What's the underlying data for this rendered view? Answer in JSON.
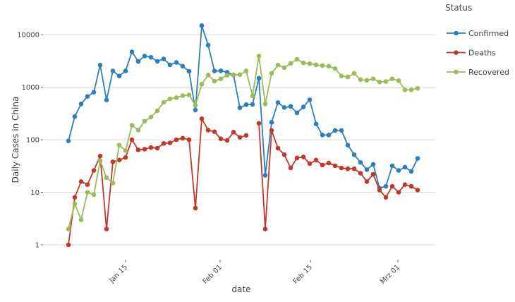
{
  "chart_data": {
    "type": "line",
    "title": "",
    "xlabel": "date",
    "ylabel": "Daily Cases in China",
    "yscale": "log10",
    "ylim": [
      1,
      10000
    ],
    "y_ticks": [
      {
        "value": 1,
        "label": "1"
      },
      {
        "value": 10,
        "label": "10"
      },
      {
        "value": 100,
        "label": "100"
      },
      {
        "value": 1000,
        "label": "1000"
      },
      {
        "value": 10000,
        "label": "10000"
      }
    ],
    "x_note": "x = day index of observation (0..55)",
    "xlim": [
      0,
      55
    ],
    "x_ticks": [
      {
        "value": 9,
        "label": "Jan 15"
      },
      {
        "value": 23,
        "label": "Feb 01"
      },
      {
        "value": 38,
        "label": "Feb 15"
      },
      {
        "value": 52,
        "label": "Mrz 01"
      }
    ],
    "grid": true,
    "legend": {
      "title": "Status",
      "placement": "right"
    },
    "series": [
      {
        "name": "Confirmed",
        "color": "#2c7fb8",
        "values": [
          95,
          277,
          480,
          665,
          800,
          2630,
          570,
          2030,
          1630,
          2030,
          4700,
          3080,
          3900,
          3700,
          3100,
          3450,
          2650,
          2950,
          2500,
          2000,
          367,
          14800,
          6300,
          2030,
          2050,
          1920,
          1700,
          406,
          465,
          470,
          1480,
          21,
          215,
          510,
          410,
          430,
          325,
          420,
          575,
          200,
          123,
          123,
          150,
          150,
          79,
          52,
          37,
          27,
          34,
          12,
          13,
          32,
          26,
          30,
          25,
          44
        ]
      },
      {
        "name": "Deaths",
        "color": "#c0392b",
        "values": [
          1,
          8,
          16,
          14,
          26,
          49,
          2,
          38,
          41,
          46,
          100,
          64,
          66,
          71,
          69,
          85,
          87,
          100,
          107,
          100,
          5,
          250,
          152,
          142,
          104,
          97,
          139,
          111,
          121,
          null,
          205,
          2,
          150,
          69,
          52,
          29,
          45,
          47,
          35,
          41,
          33,
          36,
          32,
          29,
          28,
          28,
          23,
          16,
          22,
          11,
          8,
          13,
          10,
          14,
          13,
          11
        ]
      },
      {
        "name": "Recovered",
        "color": "#9bbb59",
        "values": [
          2,
          6,
          3,
          10,
          9,
          40,
          19,
          15,
          79,
          62,
          188,
          152,
          225,
          270,
          356,
          515,
          600,
          630,
          690,
          710,
          450,
          1140,
          1700,
          1300,
          1440,
          1690,
          1720,
          1720,
          2030,
          680,
          3900,
          480,
          1830,
          2630,
          2350,
          2830,
          3380,
          2900,
          2800,
          2650,
          2570,
          2500,
          2250,
          1630,
          1560,
          1830,
          1390,
          1350,
          1440,
          1250,
          1280,
          1440,
          1330,
          890,
          890,
          950
        ]
      }
    ]
  }
}
